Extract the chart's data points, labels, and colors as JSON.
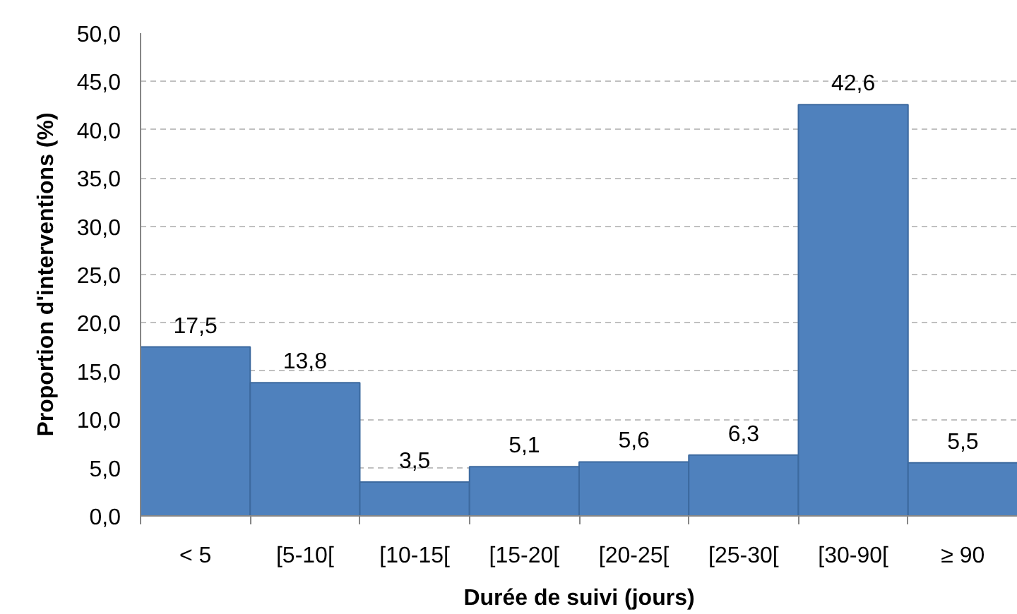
{
  "chart_data": {
    "type": "bar",
    "xlabel": "Durée de suivi (jours)",
    "ylabel": "Proportion d'interventions (%)",
    "categories": [
      "< 5",
      "[5-10[",
      "[10-15[",
      "[15-20[",
      "[20-25[",
      "[25-30[",
      "[30-90[",
      "≥ 90"
    ],
    "values": [
      17.5,
      13.8,
      3.5,
      5.1,
      5.6,
      6.3,
      42.6,
      5.5
    ],
    "value_labels": [
      "17,5",
      "13,8",
      "3,5",
      "5,1",
      "5,6",
      "6,3",
      "42,6",
      "5,5"
    ],
    "color": "#4f81bd",
    "ylim": [
      0,
      50
    ],
    "yticks": [
      {
        "value": 0,
        "label": "0,0"
      },
      {
        "value": 5,
        "label": "5,0"
      },
      {
        "value": 10,
        "label": "10,0"
      },
      {
        "value": 15,
        "label": "15,0"
      },
      {
        "value": 20,
        "label": "20,0"
      },
      {
        "value": 25,
        "label": "25,0"
      },
      {
        "value": 30,
        "label": "30,0"
      },
      {
        "value": 35,
        "label": "35,0"
      },
      {
        "value": 40,
        "label": "40,0"
      },
      {
        "value": 45,
        "label": "45,0"
      },
      {
        "value": 50,
        "label": "50,0"
      }
    ],
    "grid": "y"
  }
}
